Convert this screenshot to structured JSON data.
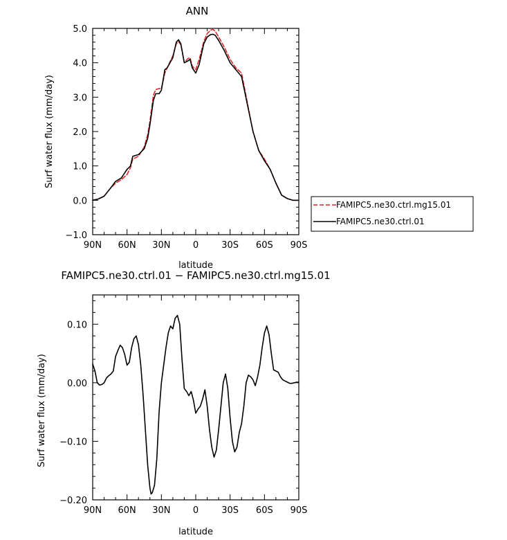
{
  "chart_data": [
    {
      "type": "line",
      "title": "ANN",
      "xlabel": "latitude",
      "ylabel": "Surf water flux (mm/day)",
      "xlim": [
        -90,
        90
      ],
      "ylim": [
        -1.0,
        5.0
      ],
      "x_ticks": [
        -90,
        -60,
        -30,
        0,
        30,
        60,
        90
      ],
      "x_tick_labels": [
        "90N",
        "60N",
        "30N",
        "0",
        "30S",
        "60S",
        "90S"
      ],
      "y_ticks": [
        -1.0,
        0.0,
        1.0,
        2.0,
        3.0,
        4.0,
        5.0
      ],
      "y_tick_labels": [
        "−1.0",
        "0.0",
        "1.0",
        "2.0",
        "3.0",
        "4.0",
        "5.0"
      ],
      "legend_placement": "right",
      "series": [
        {
          "name": "FAMIPC5.ne30.ctrl.mg15.01",
          "color": "#e0262a",
          "dashed": true,
          "x": [
            -90,
            -85,
            -80,
            -75,
            -70,
            -65,
            -60,
            -57,
            -55,
            -50,
            -45,
            -42,
            -40,
            -37,
            -35,
            -32,
            -30,
            -27,
            -25,
            -20,
            -17,
            -15,
            -13,
            -10,
            -7,
            -5,
            -3,
            0,
            3,
            5,
            7,
            10,
            13,
            15,
            17,
            20,
            25,
            30,
            35,
            40,
            45,
            50,
            55,
            60,
            65,
            70,
            75,
            80,
            85,
            90
          ],
          "y": [
            0.0,
            0.04,
            0.12,
            0.33,
            0.5,
            0.6,
            0.75,
            0.95,
            1.2,
            1.28,
            1.55,
            1.9,
            2.3,
            3.05,
            3.22,
            3.25,
            3.25,
            3.7,
            3.85,
            4.2,
            4.55,
            4.62,
            4.52,
            4.0,
            4.12,
            4.15,
            3.9,
            3.8,
            4.1,
            4.35,
            4.62,
            4.85,
            4.95,
            4.97,
            4.92,
            4.75,
            4.45,
            4.1,
            3.85,
            3.7,
            2.85,
            2.0,
            1.45,
            1.2,
            0.9,
            0.5,
            0.15,
            0.05,
            0.0,
            0.0
          ]
        },
        {
          "name": "FAMIPC5.ne30.ctrl.01",
          "color": "#000000",
          "dashed": false,
          "x": [
            -90,
            -85,
            -80,
            -75,
            -70,
            -65,
            -60,
            -57,
            -55,
            -50,
            -45,
            -42,
            -40,
            -37,
            -35,
            -32,
            -30,
            -27,
            -25,
            -20,
            -17,
            -15,
            -13,
            -10,
            -7,
            -5,
            -3,
            0,
            3,
            5,
            7,
            10,
            13,
            15,
            17,
            20,
            25,
            30,
            35,
            40,
            45,
            50,
            55,
            60,
            65,
            70,
            75,
            80,
            85,
            90
          ],
          "y": [
            0.0,
            0.04,
            0.12,
            0.33,
            0.55,
            0.65,
            0.9,
            1.0,
            1.28,
            1.33,
            1.5,
            1.8,
            2.2,
            2.9,
            3.1,
            3.1,
            3.2,
            3.8,
            3.85,
            4.15,
            4.6,
            4.67,
            4.55,
            4.0,
            4.05,
            4.1,
            3.85,
            3.7,
            3.95,
            4.25,
            4.55,
            4.75,
            4.82,
            4.83,
            4.8,
            4.65,
            4.35,
            4.0,
            3.8,
            3.6,
            2.8,
            2.0,
            1.45,
            1.15,
            0.9,
            0.5,
            0.15,
            0.05,
            0.0,
            0.0
          ]
        }
      ]
    },
    {
      "type": "line",
      "title": "FAMIPC5.ne30.ctrl.01 − FAMIPC5.ne30.ctrl.mg15.01",
      "xlabel": "latitude",
      "ylabel": "Surf water flux (mm/day)",
      "xlim": [
        -90,
        90
      ],
      "ylim": [
        -0.2,
        0.15
      ],
      "x_ticks": [
        -90,
        -60,
        -30,
        0,
        30,
        60,
        90
      ],
      "x_tick_labels": [
        "90N",
        "60N",
        "30N",
        "0",
        "30S",
        "60S",
        "90S"
      ],
      "y_ticks": [
        -0.2,
        -0.1,
        0.0,
        0.1
      ],
      "y_tick_labels": [
        "−0.20",
        "−0.10",
        "0.00",
        "0.10"
      ],
      "series": [
        {
          "color": "#000000",
          "dashed": false,
          "x": [
            -90,
            -88,
            -86,
            -84,
            -82,
            -80,
            -78,
            -76,
            -74,
            -72,
            -70,
            -68,
            -66,
            -64,
            -62,
            -60,
            -58,
            -56,
            -54,
            -52,
            -50,
            -48,
            -46,
            -44,
            -42,
            -40,
            -39,
            -38,
            -36,
            -34,
            -32,
            -30,
            -28,
            -26,
            -24,
            -22,
            -20,
            -18,
            -16,
            -14,
            -12,
            -10,
            -8,
            -6,
            -4,
            -2,
            0,
            2,
            4,
            6,
            8,
            10,
            12,
            14,
            16,
            18,
            20,
            22,
            24,
            26,
            28,
            30,
            32,
            34,
            36,
            38,
            40,
            42,
            44,
            46,
            48,
            50,
            52,
            54,
            56,
            58,
            60,
            62,
            64,
            66,
            68,
            70,
            72,
            74,
            76,
            78,
            80,
            82,
            84,
            86,
            88,
            90
          ],
          "y": [
            0.032,
            0.02,
            0.0,
            -0.004,
            -0.003,
            0.0,
            0.008,
            0.012,
            0.015,
            0.02,
            0.045,
            0.055,
            0.064,
            0.06,
            0.048,
            0.03,
            0.035,
            0.06,
            0.075,
            0.08,
            0.065,
            0.03,
            -0.02,
            -0.08,
            -0.14,
            -0.18,
            -0.19,
            -0.188,
            -0.175,
            -0.13,
            -0.05,
            0.0,
            0.03,
            0.06,
            0.085,
            0.097,
            0.092,
            0.11,
            0.115,
            0.1,
            0.04,
            -0.01,
            -0.015,
            -0.022,
            -0.015,
            -0.03,
            -0.052,
            -0.045,
            -0.04,
            -0.028,
            -0.012,
            -0.04,
            -0.08,
            -0.11,
            -0.127,
            -0.115,
            -0.08,
            -0.04,
            0.0,
            0.015,
            -0.01,
            -0.06,
            -0.1,
            -0.118,
            -0.11,
            -0.085,
            -0.07,
            -0.04,
            0.0,
            0.013,
            0.01,
            0.005,
            -0.005,
            0.01,
            0.03,
            0.06,
            0.085,
            0.097,
            0.082,
            0.05,
            0.022,
            0.02,
            0.018,
            0.01,
            0.005,
            0.003,
            0.001,
            -0.001,
            -0.001,
            0.0,
            0.001,
            0.001
          ]
        }
      ]
    }
  ]
}
